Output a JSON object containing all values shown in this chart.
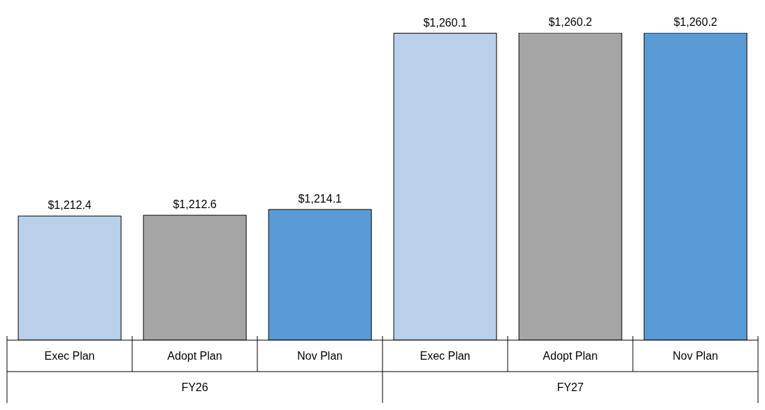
{
  "chart_data": {
    "type": "bar",
    "categories": [
      "Exec Plan",
      "Adopt Plan",
      "Nov Plan",
      "Exec Plan",
      "Adopt Plan",
      "Nov Plan"
    ],
    "values": [
      1212.4,
      1212.6,
      1214.1,
      1260.1,
      1260.2,
      1260.2
    ],
    "colors": [
      "#b8d0ea",
      "#a5a5a5",
      "#5b9bd5",
      "#b8d0ea",
      "#a5a5a5",
      "#5b9bd5"
    ],
    "value_labels": [
      "$1,212.4",
      "$1,212.6",
      "$1,214.1",
      "$1,260.1",
      "$1,260.2",
      "$1,260.2"
    ],
    "ylim": [
      1180,
      1260.2
    ],
    "annotations": [
      "FY26",
      "FY27"
    ],
    "grid": false,
    "legend": false
  }
}
